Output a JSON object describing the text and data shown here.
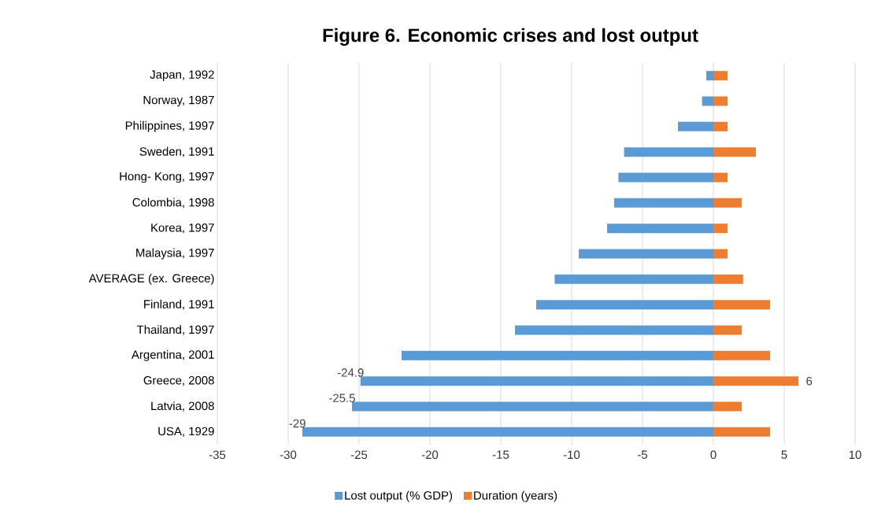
{
  "chart_data": {
    "type": "bar",
    "orientation": "horizontal",
    "title": "Figure 6. Economic crises and lost output",
    "categories": [
      "Japan, 1992",
      "Norway, 1987",
      "Philippines, 1997",
      "Sweden, 1991",
      "Hong- Kong, 1997",
      "Colombia, 1998",
      "Korea, 1997",
      "Malaysia, 1997",
      "AVERAGE (ex. Greece)",
      "Finland, 1991",
      "Thailand, 1997",
      "Argentina, 2001",
      "Greece, 2008",
      "Latvia, 2008",
      "USA, 1929"
    ],
    "series": [
      {
        "name": "Lost output (% GDP)",
        "color": "#5b9bd5",
        "values": [
          -0.5,
          -0.8,
          -2.5,
          -6.3,
          -6.7,
          -7.0,
          -7.5,
          -9.5,
          -11.2,
          -12.5,
          -14.0,
          -22.0,
          -24.9,
          -25.5,
          -29
        ],
        "value_labels": [
          null,
          null,
          null,
          null,
          null,
          null,
          null,
          null,
          null,
          null,
          null,
          null,
          "-24.9",
          "-25.5",
          "-29"
        ]
      },
      {
        "name": "Duration (years)",
        "color": "#ed7d31",
        "values": [
          1,
          1,
          1,
          3,
          1,
          2,
          1,
          1,
          2.1,
          4,
          2,
          4,
          6,
          2,
          4
        ],
        "value_labels": [
          null,
          null,
          null,
          null,
          null,
          null,
          null,
          null,
          null,
          null,
          null,
          null,
          "6",
          null,
          null
        ]
      }
    ],
    "stacked": true,
    "xlim": [
      -35,
      10
    ],
    "xticks": [
      -35,
      -30,
      -25,
      -20,
      -15,
      -10,
      -5,
      0,
      5,
      10
    ],
    "grid": "x",
    "legend": "bottom"
  }
}
